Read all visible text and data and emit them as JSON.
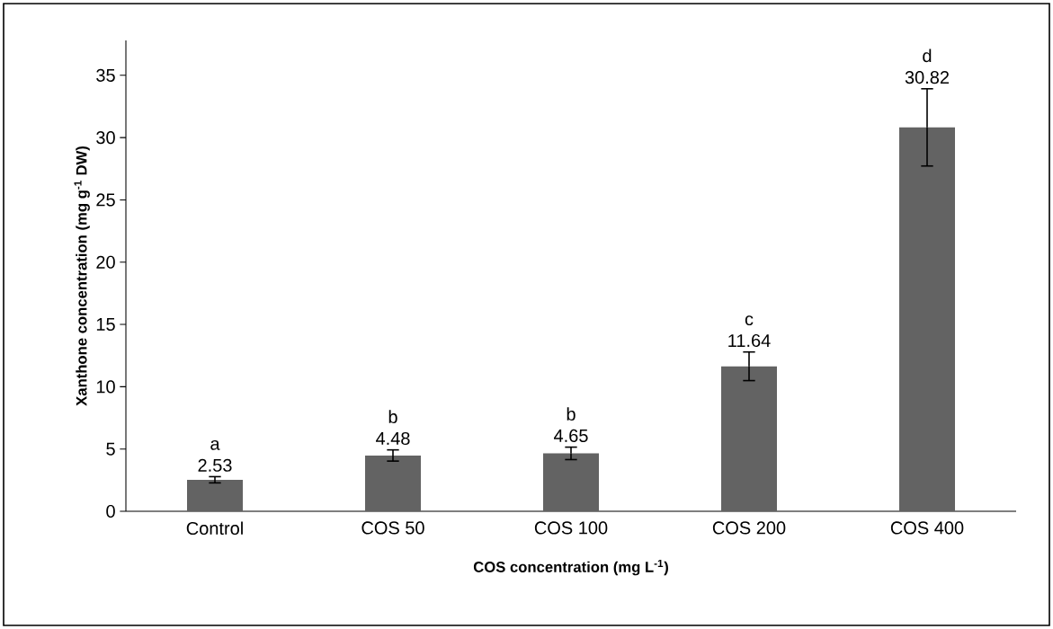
{
  "chart_data": {
    "type": "bar",
    "xlabel": "COS concentration (mg L$^{-1}$)",
    "ylabel": "Xanthone concentration (mg g$^{-1}$ DW)",
    "categories": [
      "Control",
      "COS 50",
      "COS 100",
      "COS 200",
      "COS 400"
    ],
    "values": [
      2.53,
      4.48,
      4.65,
      11.64,
      30.82
    ],
    "errors": [
      0.25,
      0.45,
      0.5,
      1.15,
      3.1
    ],
    "color": "#636363",
    "data_labels": true,
    "annotations": [
      "a",
      "b",
      "b",
      "c",
      "d"
    ],
    "ylim": [
      0,
      37.8
    ],
    "yticks": [
      0,
      5,
      10,
      15,
      20,
      25,
      30,
      35
    ],
    "grid": false
  }
}
